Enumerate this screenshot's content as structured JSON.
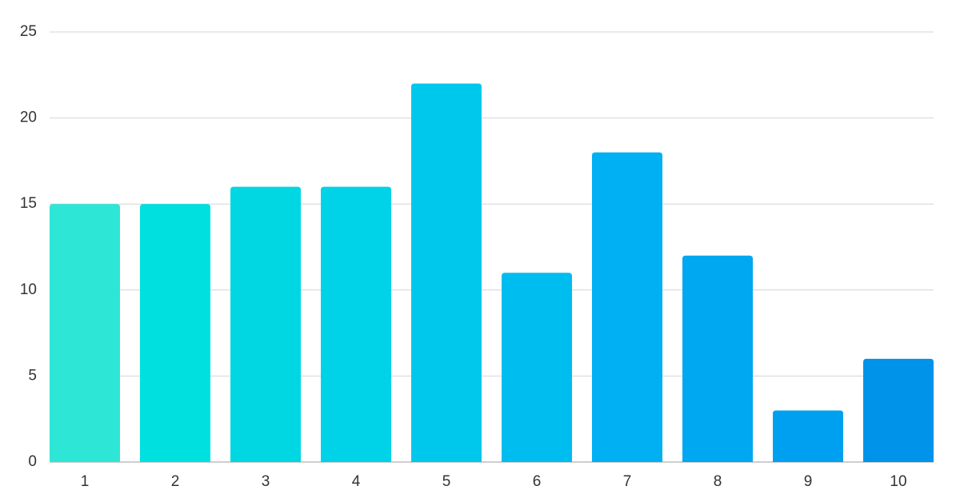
{
  "chart_data": {
    "type": "bar",
    "categories": [
      "1",
      "2",
      "3",
      "4",
      "5",
      "6",
      "7",
      "8",
      "9",
      "10"
    ],
    "values": [
      15,
      15,
      16,
      16,
      22,
      11,
      18,
      12,
      3,
      6
    ],
    "colors": [
      "#2ee6d6",
      "#00e1df",
      "#00d7e2",
      "#00d3e8",
      "#00c8ec",
      "#00bdf0",
      "#00b0f2",
      "#00a7f1",
      "#00a0f0",
      "#0093ea"
    ],
    "ylim": [
      0,
      25
    ],
    "yticks": [
      0,
      5,
      10,
      15,
      20,
      25
    ],
    "grid": true
  }
}
